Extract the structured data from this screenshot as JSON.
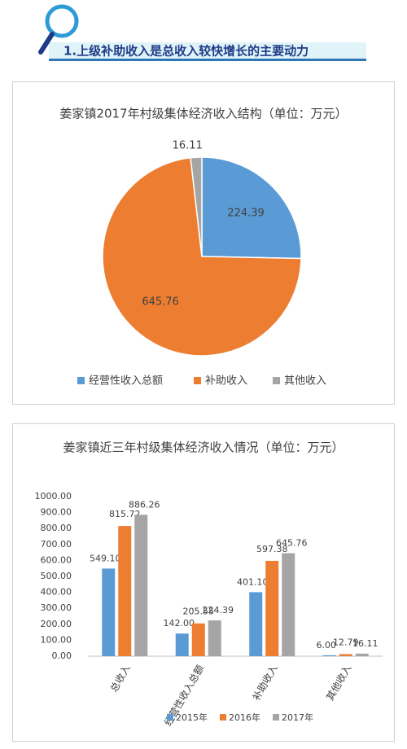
{
  "header": {
    "title": "1.上级补助收入是总收入较快增长的主要动力"
  },
  "chart_data": [
    {
      "type": "pie",
      "title": "姜家镇2017年村级集体经济收入结构（单位：万元）",
      "categories": [
        "经营性收入总额",
        "补助收入",
        "其他收入"
      ],
      "values": [
        224.39,
        645.76,
        16.11
      ],
      "colors": [
        "#5b9bd5",
        "#ed7d31",
        "#a5a5a5"
      ]
    },
    {
      "type": "bar",
      "title": "姜家镇近三年村级集体经济收入情况（单位：万元）",
      "categories": [
        "总收入",
        "经营性收入总额",
        "补助收入",
        "其他收入"
      ],
      "series": [
        {
          "name": "2015年",
          "color": "#5b9bd5",
          "values": [
            549.1,
            142,
            401.1,
            6
          ],
          "value_labels": [
            "549.10",
            "142.00",
            "401.10",
            "6.00"
          ]
        },
        {
          "name": "2016年",
          "color": "#ed7d31",
          "values": [
            815.72,
            205.55,
            597.38,
            12.79
          ],
          "value_labels": [
            "815.72",
            "205.55",
            "597.38",
            "12.79"
          ]
        },
        {
          "name": "2017年",
          "color": "#a5a5a5",
          "values": [
            886.26,
            224.39,
            645.76,
            16.11
          ],
          "value_labels": [
            "886.26",
            "224.39",
            "645.76",
            "16.11"
          ]
        }
      ],
      "ylim": [
        0,
        1000
      ],
      "yticks": [
        {
          "value": 0,
          "label": "0.00"
        },
        {
          "value": 100,
          "label": "100.00"
        },
        {
          "value": 200,
          "label": "200.00"
        },
        {
          "value": 300,
          "label": "300.00"
        },
        {
          "value": 400,
          "label": "400.00"
        },
        {
          "value": 500,
          "label": "500.00"
        },
        {
          "value": 600,
          "label": "600.00"
        },
        {
          "value": 700,
          "label": "700.00"
        },
        {
          "value": 800,
          "label": "800.00"
        },
        {
          "value": 900,
          "label": "900.00"
        },
        {
          "value": 1000,
          "label": "1000.00"
        }
      ]
    }
  ]
}
